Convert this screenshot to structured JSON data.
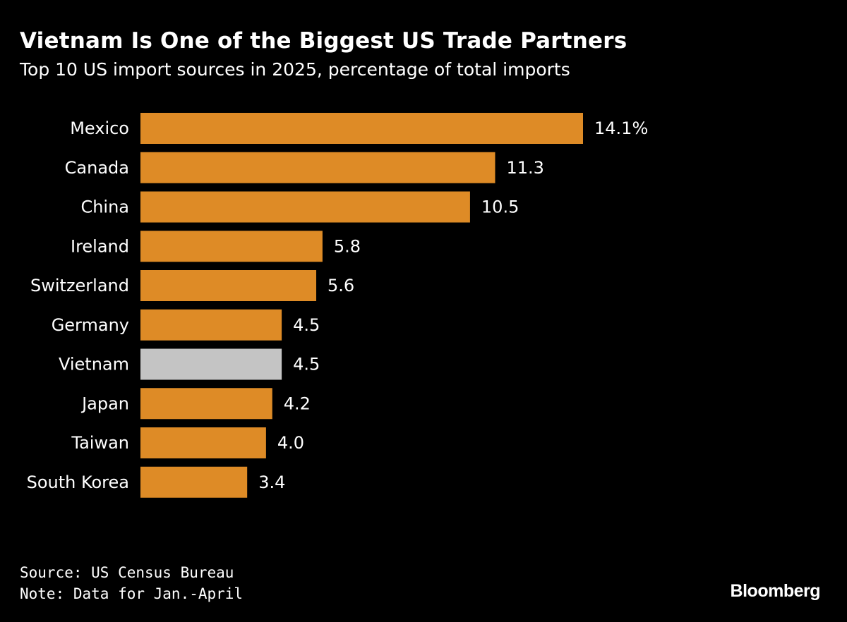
{
  "title": "Vietnam Is One of the Biggest US Trade Partners",
  "subtitle": "Top 10 US import sources in 2025, percentage of total imports",
  "source": "Source: US Census Bureau",
  "note": "Note: Data for Jan.-April",
  "logo": "Bloomberg",
  "colors": {
    "bar": "#de8b26",
    "highlight": "#c4c4c4",
    "background": "#000000"
  },
  "chart_data": {
    "type": "bar",
    "orientation": "horizontal",
    "categories": [
      "Mexico",
      "Canada",
      "China",
      "Ireland",
      "Switzerland",
      "Germany",
      "Vietnam",
      "Japan",
      "Taiwan",
      "South Korea"
    ],
    "values": [
      14.1,
      11.3,
      10.5,
      5.8,
      5.6,
      4.5,
      4.5,
      4.2,
      4.0,
      3.4
    ],
    "value_labels": [
      "14.1%",
      "11.3",
      "10.5",
      "5.8",
      "5.6",
      "4.5",
      "4.5",
      "4.2",
      "4.0",
      "3.4"
    ],
    "highlight": "Vietnam",
    "unit": "%",
    "xlim": [
      0,
      14.1
    ],
    "grid": false
  }
}
